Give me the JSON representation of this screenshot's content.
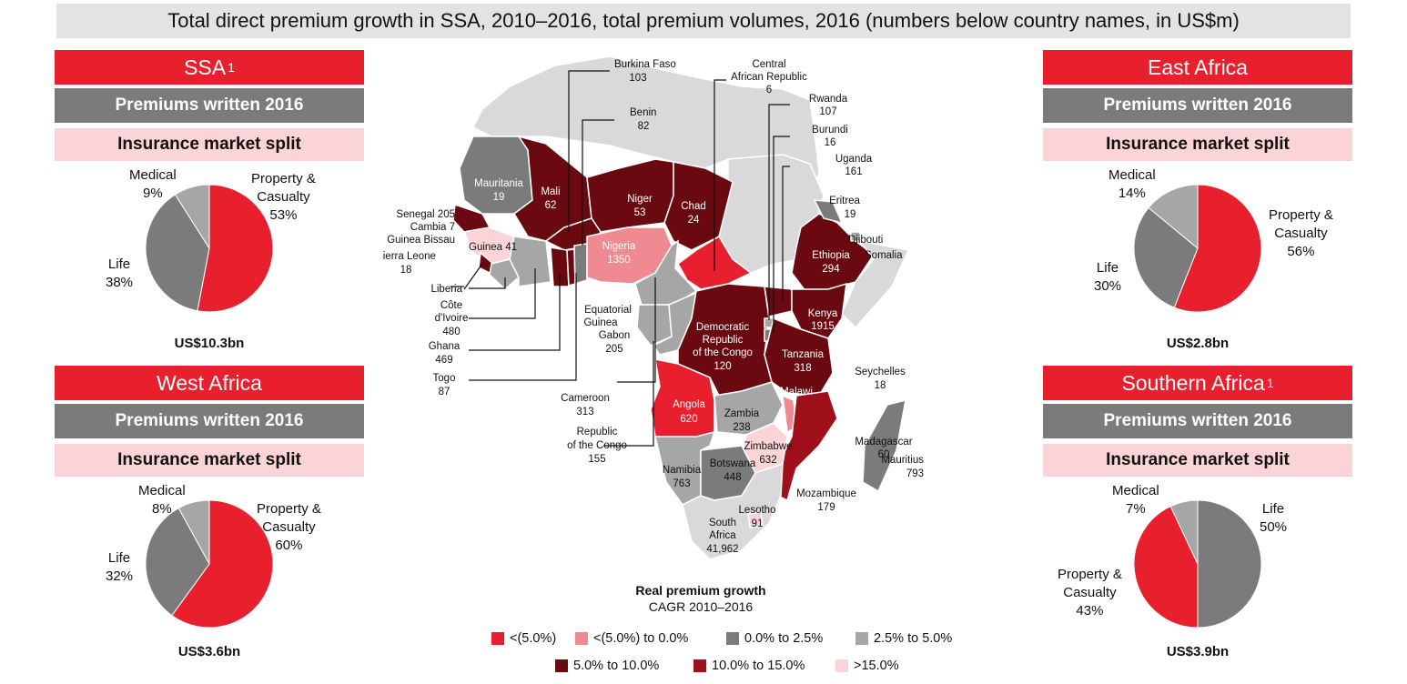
{
  "title": "Total direct premium growth in SSA, 2010–2016, total premium volumes, 2016 (numbers below country names, in US$m)",
  "colors": {
    "red": "#e8202d",
    "pink": "#f08a92",
    "darkgray": "#7b7b7b",
    "midgray": "#a6a6a6",
    "maroon": "#6a0a10",
    "darkred": "#a0101a",
    "lightpink": "#fbd4d7",
    "lightgray": "#d9d9d9"
  },
  "panels": {
    "ssa": {
      "header": "SSA",
      "sup": "1",
      "sub": "Premiums written 2016",
      "split": "Insurance market split",
      "total": "US$10.3bn",
      "labels": {
        "medical": "Medical",
        "medical_v": "9%",
        "pc": "Property &",
        "pc2": "Casualty",
        "pc_v": "53%",
        "life": "Life",
        "life_v": "38%"
      }
    },
    "west": {
      "header": "West Africa",
      "sup": "",
      "sub": "Premiums written 2016",
      "split": "Insurance market split",
      "total": "US$3.6bn",
      "labels": {
        "medical": "Medical",
        "medical_v": "8%",
        "pc": "Property &",
        "pc2": "Casualty",
        "pc_v": "60%",
        "life": "Life",
        "life_v": "32%"
      }
    },
    "east": {
      "header": "East Africa",
      "sup": "",
      "sub": "Premiums written 2016",
      "split": "Insurance market split",
      "total": "US$2.8bn",
      "labels": {
        "medical": "Medical",
        "medical_v": "14%",
        "pc": "Property &",
        "pc2": "Casualty",
        "pc_v": "56%",
        "life": "Life",
        "life_v": "30%"
      }
    },
    "south": {
      "header": "Southern Africa",
      "sup": "1",
      "sub": "Premiums written 2016",
      "split": "Insurance market split",
      "total": "US$3.9bn",
      "labels": {
        "medical": "Medical",
        "medical_v": "7%",
        "pc": "Property &",
        "pc2": "Casualty",
        "pc_v": "43%",
        "life": "Life",
        "life_v": "50%"
      }
    }
  },
  "chart_data": [
    {
      "type": "pie",
      "name": "SSA",
      "slices": [
        {
          "label": "Property & Casualty",
          "value": 53
        },
        {
          "label": "Life",
          "value": 38
        },
        {
          "label": "Medical",
          "value": 9
        }
      ]
    },
    {
      "type": "pie",
      "name": "West Africa",
      "slices": [
        {
          "label": "Property & Casualty",
          "value": 60
        },
        {
          "label": "Life",
          "value": 32
        },
        {
          "label": "Medical",
          "value": 8
        }
      ]
    },
    {
      "type": "pie",
      "name": "East Africa",
      "slices": [
        {
          "label": "Property & Casualty",
          "value": 56
        },
        {
          "label": "Life",
          "value": 30
        },
        {
          "label": "Medical",
          "value": 14
        }
      ]
    },
    {
      "type": "pie",
      "name": "Southern Africa",
      "slices": [
        {
          "label": "Life",
          "value": 50
        },
        {
          "label": "Property & Casualty",
          "value": 43
        },
        {
          "label": "Medical",
          "value": 7
        }
      ]
    }
  ],
  "legend": {
    "title": "Real premium growth",
    "subtitle": "CAGR 2010–2016",
    "items": [
      {
        "label": "<(5.0%)",
        "color": "#e8202d"
      },
      {
        "label": "<(5.0%) to 0.0%",
        "color": "#f08a92"
      },
      {
        "label": "0.0% to 2.5%",
        "color": "#7b7b7b"
      },
      {
        "label": "2.5% to 5.0%",
        "color": "#a6a6a6"
      },
      {
        "label": "5.0% to 10.0%",
        "color": "#6a0a10"
      },
      {
        "label": "10.0% to 15.0%",
        "color": "#a0101a"
      },
      {
        "label": ">15.0%",
        "color": "#fbd4d7"
      }
    ]
  },
  "map_labels": {
    "burkina": "Burkina Faso",
    "burkina_v": "103",
    "car": "Central",
    "car2": "African Republic",
    "car_v": "6",
    "benin": "Benin",
    "benin_v": "82",
    "rwanda": "Rwanda",
    "rwanda_v": "107",
    "burundi": "Burundi",
    "burundi_v": "16",
    "uganda": "Uganda",
    "uganda_v": "161",
    "mauritania": "Mauritania",
    "mauritania_v": "19",
    "mali": "Mali",
    "mali_v": "62",
    "niger": "Niger",
    "niger_v": "53",
    "chad": "Chad",
    "chad_v": "24",
    "eritrea": "Eritrea",
    "eritrea_v": "19",
    "senegal": "Senegal 205",
    "gambia": "Cambia 7",
    "guineab": "Guinea Bissau",
    "guinea": "Guinea 41",
    "sierra": "Sierra Leone",
    "sierra_v": "18",
    "nigeria": "Nigeria",
    "nigeria_v": "1350",
    "ethiopia": "Ethiopia",
    "ethiopia_v": "294",
    "djibouti": "Djibouti",
    "somalia": "Somalia",
    "liberia": "Liberia",
    "cote": "Côte",
    "cote2": "d'Ivoire",
    "cote_v": "480",
    "eqguinea": "Equatorial",
    "eqguinea2": "Guinea",
    "gabon": "Gabon",
    "gabon_v": "205",
    "drc": "Democratic",
    "drc2": "Republic",
    "drc3": "of the Congo",
    "drc_v": "120",
    "kenya": "Kenya",
    "kenya_v": "1915",
    "ghana": "Ghana",
    "ghana_v": "469",
    "togo": "Togo",
    "togo_v": "87",
    "tanzania": "Tanzania",
    "tanzania_v": "318",
    "seychelles": "Seychelles",
    "seychelles_v": "18",
    "cameroon": "Cameroon",
    "cameroon_v": "313",
    "angola": "Angola",
    "angola_v": "620",
    "malawi": "Malawi",
    "zambia": "Zambia",
    "zambia_v": "238",
    "roc": "Republic",
    "roc2": "of the Congo",
    "roc_v": "155",
    "zimbabwe": "Zimbabwe",
    "zimbabwe_v": "632",
    "madagascar": "Madagascar",
    "madagascar_v": "60",
    "mauritius": "Mauritius",
    "mauritius_v": "793",
    "namibia": "Namibia",
    "namibia_v": "763",
    "botswana": "Botswana",
    "botswana_v": "448",
    "mozambique": "Mozambique",
    "mozambique_v": "179",
    "lesotho": "Lesotho",
    "lesotho_v": "91",
    "sa": "South",
    "sa2": "Africa",
    "sa_v": "41,962"
  }
}
